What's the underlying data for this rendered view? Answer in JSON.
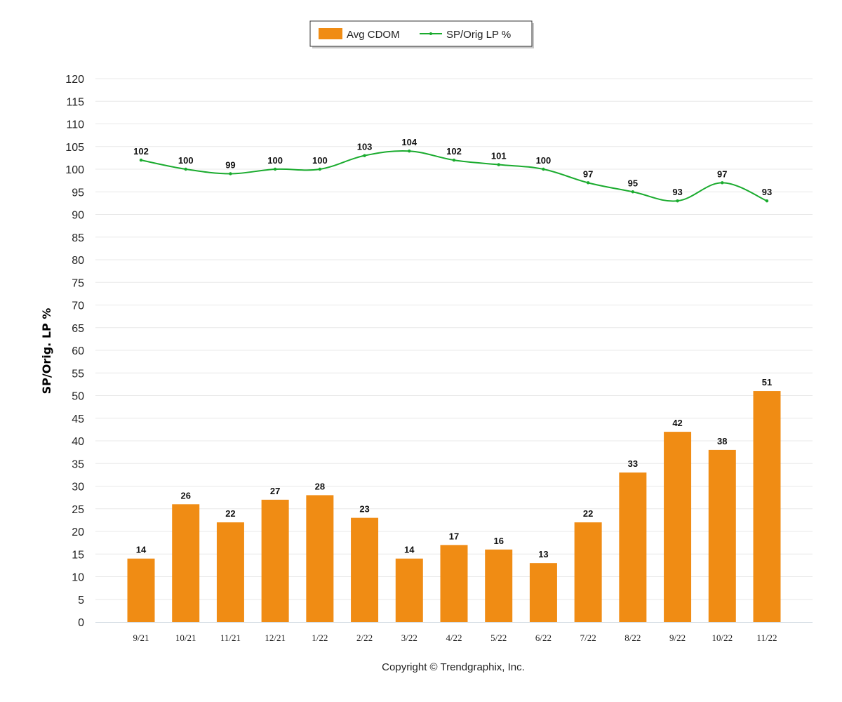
{
  "copyright": "Copyright © Trendgraphix, Inc.",
  "chart_data": {
    "type": "bar",
    "categories": [
      "9/21",
      "10/21",
      "11/21",
      "12/21",
      "1/22",
      "2/22",
      "3/22",
      "4/22",
      "5/22",
      "6/22",
      "7/22",
      "8/22",
      "9/22",
      "10/22",
      "11/22"
    ],
    "series": [
      {
        "name": "Avg CDOM",
        "type": "bar",
        "color": "#f08c14",
        "values": [
          14,
          26,
          22,
          27,
          28,
          23,
          14,
          17,
          16,
          13,
          22,
          33,
          42,
          38,
          51
        ]
      },
      {
        "name": "SP/Orig LP %",
        "type": "line",
        "color": "#1aab2e",
        "values": [
          102,
          100,
          99,
          100,
          100,
          103,
          104,
          102,
          101,
          100,
          97,
          95,
          93,
          97,
          93
        ]
      }
    ],
    "ylabel": "SP/Orig. LP %",
    "ylim": [
      0,
      120
    ],
    "yticks": [
      0,
      5,
      10,
      15,
      20,
      25,
      30,
      35,
      40,
      45,
      50,
      55,
      60,
      65,
      70,
      75,
      80,
      85,
      90,
      95,
      100,
      105,
      110,
      115,
      120
    ],
    "grid": true,
    "legend": "top-center"
  }
}
